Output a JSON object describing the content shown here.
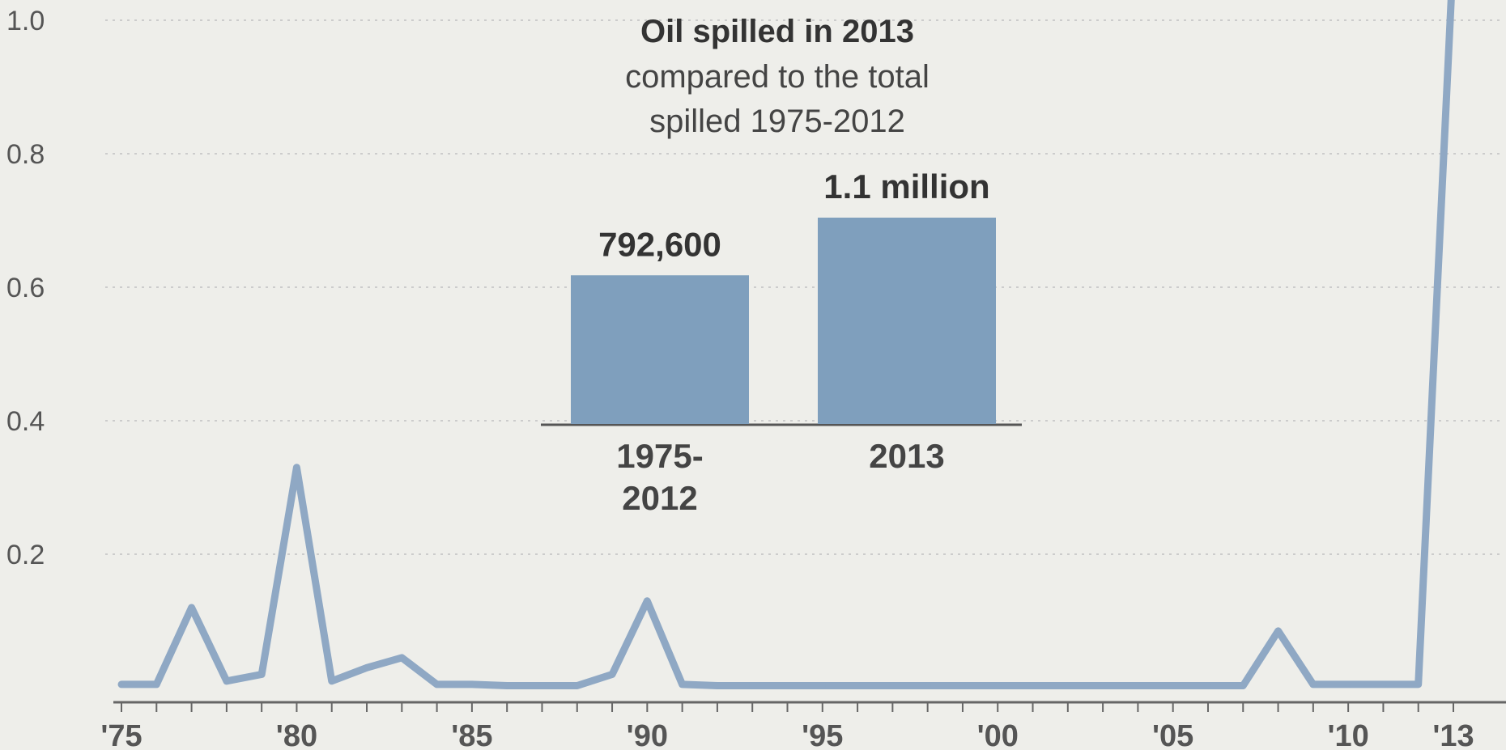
{
  "colors": {
    "background": "#eeeeea",
    "line": "#8fa8c4",
    "bar": "#7f9fbd",
    "grid": "#cccccc",
    "axis": "#666666"
  },
  "chart_data": [
    {
      "type": "line",
      "title": "",
      "xlabel": "",
      "ylabel": "",
      "ylim": [
        0,
        1.0
      ],
      "y_ticks": [
        "0.2",
        "0.4",
        "0.6",
        "0.8",
        "1.0"
      ],
      "y_tick_values": [
        0.2,
        0.4,
        0.6,
        0.8,
        1.0
      ],
      "x_ticks": [
        "'75",
        "'80",
        "'85",
        "'90",
        "'95",
        "'00",
        "'05",
        "'10",
        "'13"
      ],
      "x_tick_values": [
        1975,
        1980,
        1985,
        1990,
        1995,
        2000,
        2005,
        2010,
        2013
      ],
      "grid": true,
      "series": [
        {
          "x": [
            1975,
            1976,
            1977,
            1978,
            1979,
            1980,
            1981,
            1982,
            1983,
            1984,
            1985,
            1986,
            1987,
            1988,
            1989,
            1990,
            1991,
            1992,
            1993,
            1994,
            1995,
            1996,
            1997,
            1998,
            1999,
            2000,
            2001,
            2002,
            2003,
            2004,
            2005,
            2006,
            2007,
            2008,
            2009,
            2010,
            2011,
            2012,
            2013
          ],
          "y": [
            0.005,
            0.005,
            0.12,
            0.01,
            0.02,
            0.33,
            0.01,
            0.03,
            0.045,
            0.005,
            0.005,
            0.003,
            0.003,
            0.003,
            0.02,
            0.13,
            0.005,
            0.003,
            0.003,
            0.003,
            0.003,
            0.003,
            0.003,
            0.003,
            0.003,
            0.003,
            0.003,
            0.003,
            0.003,
            0.003,
            0.003,
            0.003,
            0.003,
            0.085,
            0.005,
            0.005,
            0.005,
            0.005,
            1.1
          ]
        }
      ]
    },
    {
      "type": "bar",
      "title": "Oil spilled in 2013",
      "subtitle": [
        "compared to the total",
        "spilled 1975-2012"
      ],
      "categories": [
        [
          "1975-",
          "2012"
        ],
        [
          "2013"
        ]
      ],
      "values": [
        792600,
        1100000
      ],
      "value_labels": [
        "792,600",
        "1.1 million"
      ]
    }
  ]
}
